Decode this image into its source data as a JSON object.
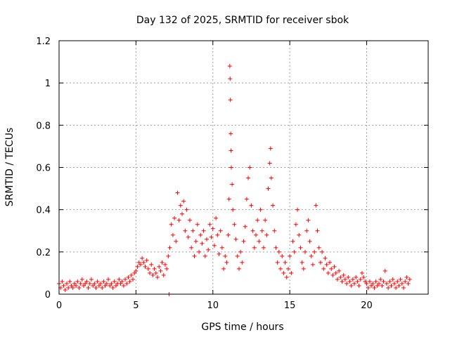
{
  "chart_data": {
    "type": "scatter",
    "title": "Day 132 of 2025, SRMTID for receiver sbok",
    "xlabel": "GPS time / hours",
    "ylabel": "SRMTID / TECUs",
    "xlim": [
      0,
      24
    ],
    "ylim": [
      0,
      1.2
    ],
    "xticks": [
      0,
      5,
      10,
      15,
      20
    ],
    "xtick_labels": [
      "0",
      "5",
      "10",
      "15",
      "20"
    ],
    "yticks": [
      0,
      0.2,
      0.4,
      0.6,
      0.8,
      1.0,
      1.2
    ],
    "ytick_labels": [
      "0",
      "0.2",
      "0.4",
      "0.6",
      "0.8",
      "1",
      "1.2"
    ],
    "grid": true,
    "marker": "+",
    "color": "#ff0000",
    "series": [
      {
        "name": "SRMTID",
        "points": [
          [
            0.0,
            0.05
          ],
          [
            0.1,
            0.03
          ],
          [
            0.2,
            0.06
          ],
          [
            0.3,
            0.04
          ],
          [
            0.4,
            0.02
          ],
          [
            0.5,
            0.05
          ],
          [
            0.6,
            0.03
          ],
          [
            0.7,
            0.06
          ],
          [
            0.8,
            0.04
          ],
          [
            0.9,
            0.03
          ],
          [
            1.0,
            0.05
          ],
          [
            1.1,
            0.04
          ],
          [
            1.2,
            0.06
          ],
          [
            1.3,
            0.03
          ],
          [
            1.4,
            0.05
          ],
          [
            1.5,
            0.07
          ],
          [
            1.6,
            0.04
          ],
          [
            1.7,
            0.05
          ],
          [
            1.8,
            0.06
          ],
          [
            1.9,
            0.03
          ],
          [
            2.0,
            0.05
          ],
          [
            2.1,
            0.07
          ],
          [
            2.2,
            0.04
          ],
          [
            2.3,
            0.05
          ],
          [
            2.4,
            0.03
          ],
          [
            2.5,
            0.06
          ],
          [
            2.6,
            0.04
          ],
          [
            2.7,
            0.05
          ],
          [
            2.8,
            0.03
          ],
          [
            2.9,
            0.06
          ],
          [
            3.0,
            0.04
          ],
          [
            3.1,
            0.05
          ],
          [
            3.2,
            0.07
          ],
          [
            3.3,
            0.04
          ],
          [
            3.4,
            0.05
          ],
          [
            3.5,
            0.03
          ],
          [
            3.6,
            0.06
          ],
          [
            3.7,
            0.04
          ],
          [
            3.8,
            0.05
          ],
          [
            3.9,
            0.07
          ],
          [
            4.0,
            0.05
          ],
          [
            4.1,
            0.06
          ],
          [
            4.2,
            0.04
          ],
          [
            4.3,
            0.07
          ],
          [
            4.4,
            0.05
          ],
          [
            4.5,
            0.08
          ],
          [
            4.6,
            0.06
          ],
          [
            4.7,
            0.09
          ],
          [
            4.8,
            0.07
          ],
          [
            4.9,
            0.1
          ],
          [
            5.0,
            0.11
          ],
          [
            5.1,
            0.13
          ],
          [
            5.2,
            0.15
          ],
          [
            5.3,
            0.14
          ],
          [
            5.4,
            0.17
          ],
          [
            5.5,
            0.15
          ],
          [
            5.6,
            0.13
          ],
          [
            5.7,
            0.16
          ],
          [
            5.8,
            0.12
          ],
          [
            5.9,
            0.1
          ],
          [
            6.0,
            0.14
          ],
          [
            6.1,
            0.09
          ],
          [
            6.2,
            0.12
          ],
          [
            6.3,
            0.1
          ],
          [
            6.4,
            0.08
          ],
          [
            6.5,
            0.13
          ],
          [
            6.6,
            0.11
          ],
          [
            6.7,
            0.15
          ],
          [
            6.8,
            0.09
          ],
          [
            6.9,
            0.14
          ],
          [
            7.0,
            0.12
          ],
          [
            7.1,
            0.18
          ],
          [
            7.15,
            0.0
          ],
          [
            7.2,
            0.22
          ],
          [
            7.3,
            0.33
          ],
          [
            7.4,
            0.28
          ],
          [
            7.5,
            0.36
          ],
          [
            7.6,
            0.25
          ],
          [
            7.7,
            0.48
          ],
          [
            7.8,
            0.35
          ],
          [
            7.9,
            0.42
          ],
          [
            8.0,
            0.38
          ],
          [
            8.1,
            0.44
          ],
          [
            8.2,
            0.3
          ],
          [
            8.3,
            0.4
          ],
          [
            8.4,
            0.27
          ],
          [
            8.5,
            0.35
          ],
          [
            8.6,
            0.22
          ],
          [
            8.7,
            0.3
          ],
          [
            8.8,
            0.18
          ],
          [
            8.9,
            0.25
          ],
          [
            9.0,
            0.33
          ],
          [
            9.1,
            0.2
          ],
          [
            9.2,
            0.28
          ],
          [
            9.3,
            0.24
          ],
          [
            9.4,
            0.3
          ],
          [
            9.5,
            0.18
          ],
          [
            9.6,
            0.26
          ],
          [
            9.7,
            0.21
          ],
          [
            9.8,
            0.33
          ],
          [
            9.9,
            0.27
          ],
          [
            10.0,
            0.31
          ],
          [
            10.1,
            0.23
          ],
          [
            10.2,
            0.36
          ],
          [
            10.3,
            0.28
          ],
          [
            10.4,
            0.19
          ],
          [
            10.5,
            0.3
          ],
          [
            10.6,
            0.22
          ],
          [
            10.7,
            0.12
          ],
          [
            10.8,
            0.18
          ],
          [
            10.9,
            0.15
          ],
          [
            11.0,
            0.28
          ],
          [
            11.05,
            0.45
          ],
          [
            11.1,
            1.08
          ],
          [
            11.12,
            1.02
          ],
          [
            11.14,
            0.92
          ],
          [
            11.16,
            0.76
          ],
          [
            11.18,
            0.68
          ],
          [
            11.2,
            0.6
          ],
          [
            11.25,
            0.52
          ],
          [
            11.3,
            0.4
          ],
          [
            11.4,
            0.33
          ],
          [
            11.5,
            0.26
          ],
          [
            11.6,
            0.18
          ],
          [
            11.7,
            0.12
          ],
          [
            11.8,
            0.2
          ],
          [
            11.9,
            0.15
          ],
          [
            12.0,
            0.25
          ],
          [
            12.1,
            0.32
          ],
          [
            12.2,
            0.45
          ],
          [
            12.3,
            0.55
          ],
          [
            12.4,
            0.6
          ],
          [
            12.5,
            0.42
          ],
          [
            12.6,
            0.3
          ],
          [
            12.7,
            0.22
          ],
          [
            12.8,
            0.28
          ],
          [
            12.9,
            0.35
          ],
          [
            13.0,
            0.25
          ],
          [
            13.1,
            0.4
          ],
          [
            13.2,
            0.3
          ],
          [
            13.3,
            0.22
          ],
          [
            13.4,
            0.35
          ],
          [
            13.5,
            0.28
          ],
          [
            13.6,
            0.5
          ],
          [
            13.7,
            0.62
          ],
          [
            13.75,
            0.69
          ],
          [
            13.8,
            0.55
          ],
          [
            13.9,
            0.42
          ],
          [
            14.0,
            0.3
          ],
          [
            14.1,
            0.22
          ],
          [
            14.2,
            0.15
          ],
          [
            14.3,
            0.2
          ],
          [
            14.4,
            0.12
          ],
          [
            14.5,
            0.18
          ],
          [
            14.6,
            0.1
          ],
          [
            14.7,
            0.15
          ],
          [
            14.8,
            0.08
          ],
          [
            14.9,
            0.12
          ],
          [
            15.0,
            0.18
          ],
          [
            15.1,
            0.1
          ],
          [
            15.2,
            0.25
          ],
          [
            15.3,
            0.2
          ],
          [
            15.4,
            0.33
          ],
          [
            15.5,
            0.4
          ],
          [
            15.6,
            0.28
          ],
          [
            15.7,
            0.22
          ],
          [
            15.8,
            0.15
          ],
          [
            15.9,
            0.12
          ],
          [
            16.0,
            0.2
          ],
          [
            16.1,
            0.3
          ],
          [
            16.2,
            0.35
          ],
          [
            16.3,
            0.25
          ],
          [
            16.4,
            0.18
          ],
          [
            16.5,
            0.14
          ],
          [
            16.6,
            0.2
          ],
          [
            16.7,
            0.42
          ],
          [
            16.8,
            0.3
          ],
          [
            16.9,
            0.22
          ],
          [
            17.0,
            0.15
          ],
          [
            17.1,
            0.2
          ],
          [
            17.2,
            0.12
          ],
          [
            17.3,
            0.17
          ],
          [
            17.4,
            0.14
          ],
          [
            17.5,
            0.1
          ],
          [
            17.6,
            0.15
          ],
          [
            17.7,
            0.12
          ],
          [
            17.8,
            0.09
          ],
          [
            17.9,
            0.13
          ],
          [
            18.0,
            0.1
          ],
          [
            18.1,
            0.07
          ],
          [
            18.2,
            0.11
          ],
          [
            18.3,
            0.08
          ],
          [
            18.4,
            0.06
          ],
          [
            18.5,
            0.09
          ],
          [
            18.6,
            0.07
          ],
          [
            18.7,
            0.05
          ],
          [
            18.8,
            0.08
          ],
          [
            18.9,
            0.06
          ],
          [
            19.0,
            0.04
          ],
          [
            19.1,
            0.07
          ],
          [
            19.2,
            0.05
          ],
          [
            19.3,
            0.08
          ],
          [
            19.4,
            0.06
          ],
          [
            19.5,
            0.04
          ],
          [
            19.6,
            0.07
          ],
          [
            19.7,
            0.1
          ],
          [
            19.8,
            0.08
          ],
          [
            19.9,
            0.06
          ],
          [
            20.0,
            0.05
          ],
          [
            20.1,
            0.03
          ],
          [
            20.2,
            0.06
          ],
          [
            20.3,
            0.04
          ],
          [
            20.4,
            0.05
          ],
          [
            20.5,
            0.03
          ],
          [
            20.6,
            0.06
          ],
          [
            20.7,
            0.04
          ],
          [
            20.8,
            0.05
          ],
          [
            20.9,
            0.07
          ],
          [
            21.0,
            0.04
          ],
          [
            21.1,
            0.06
          ],
          [
            21.2,
            0.11
          ],
          [
            21.3,
            0.05
          ],
          [
            21.4,
            0.03
          ],
          [
            21.5,
            0.06
          ],
          [
            21.6,
            0.04
          ],
          [
            21.7,
            0.07
          ],
          [
            21.8,
            0.05
          ],
          [
            21.9,
            0.03
          ],
          [
            22.0,
            0.06
          ],
          [
            22.1,
            0.04
          ],
          [
            22.2,
            0.07
          ],
          [
            22.3,
            0.05
          ],
          [
            22.4,
            0.03
          ],
          [
            22.5,
            0.06
          ],
          [
            22.6,
            0.08
          ],
          [
            22.7,
            0.05
          ],
          [
            22.8,
            0.07
          ]
        ]
      }
    ]
  }
}
